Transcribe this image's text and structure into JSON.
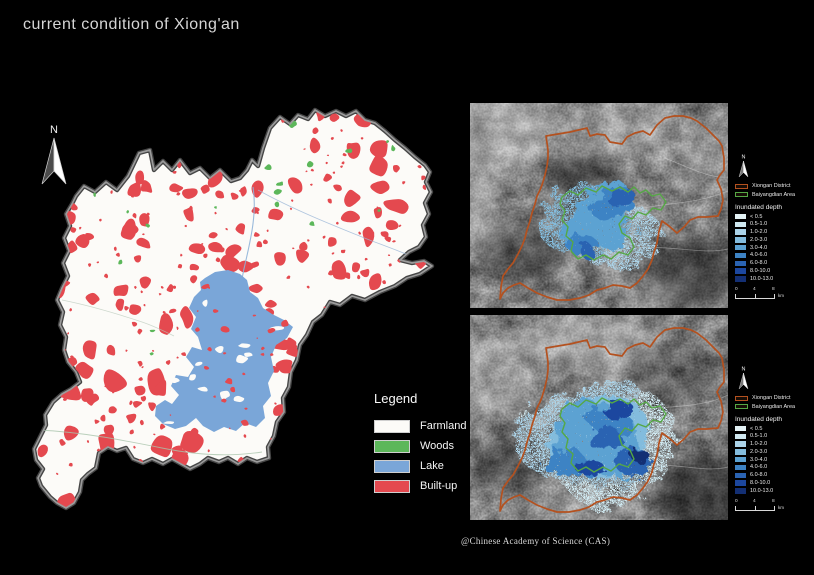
{
  "page": {
    "title": "current condition of Xiong'an",
    "attribution": "@Chinese Academy of Science (CAS)",
    "background": "#000000",
    "title_color": "#d6d6d6"
  },
  "main_map": {
    "north_label": "N",
    "boundary_color": "#9b9b9b",
    "legend": {
      "title": "Legend",
      "items": [
        {
          "label": "Farmland",
          "color": "#fcfbf8"
        },
        {
          "label": "Woods",
          "color": "#5cb75a"
        },
        {
          "label": "Lake",
          "color": "#7aa6d8"
        },
        {
          "label": "Built-up",
          "color": "#e4494f"
        }
      ]
    }
  },
  "flood_legend": {
    "north_label": "N",
    "boundary_items": [
      {
        "label": "Xiongan District",
        "color": "#b4511f"
      },
      {
        "label": "Baiyangdian Area",
        "color": "#55a845"
      }
    ],
    "depth_title": "Inundated depth",
    "depth_classes": [
      {
        "label": "< 0.5",
        "color": "#e3f2f5"
      },
      {
        "label": "0.5-1.0",
        "color": "#cfe8f0"
      },
      {
        "label": "1.0-2.0",
        "color": "#abd3e8"
      },
      {
        "label": "2.0-3.0",
        "color": "#83bcdd"
      },
      {
        "label": "3.0-4.0",
        "color": "#5ca2d2"
      },
      {
        "label": "4.0-6.0",
        "color": "#3d83c4"
      },
      {
        "label": "6.0-8.0",
        "color": "#2a63b2"
      },
      {
        "label": "8.0-10.0",
        "color": "#1c479f"
      },
      {
        "label": "10.0-13.0",
        "color": "#132f74"
      }
    ],
    "scale_bar": {
      "labels": [
        "0",
        "4",
        "8"
      ],
      "unit": "km"
    }
  }
}
